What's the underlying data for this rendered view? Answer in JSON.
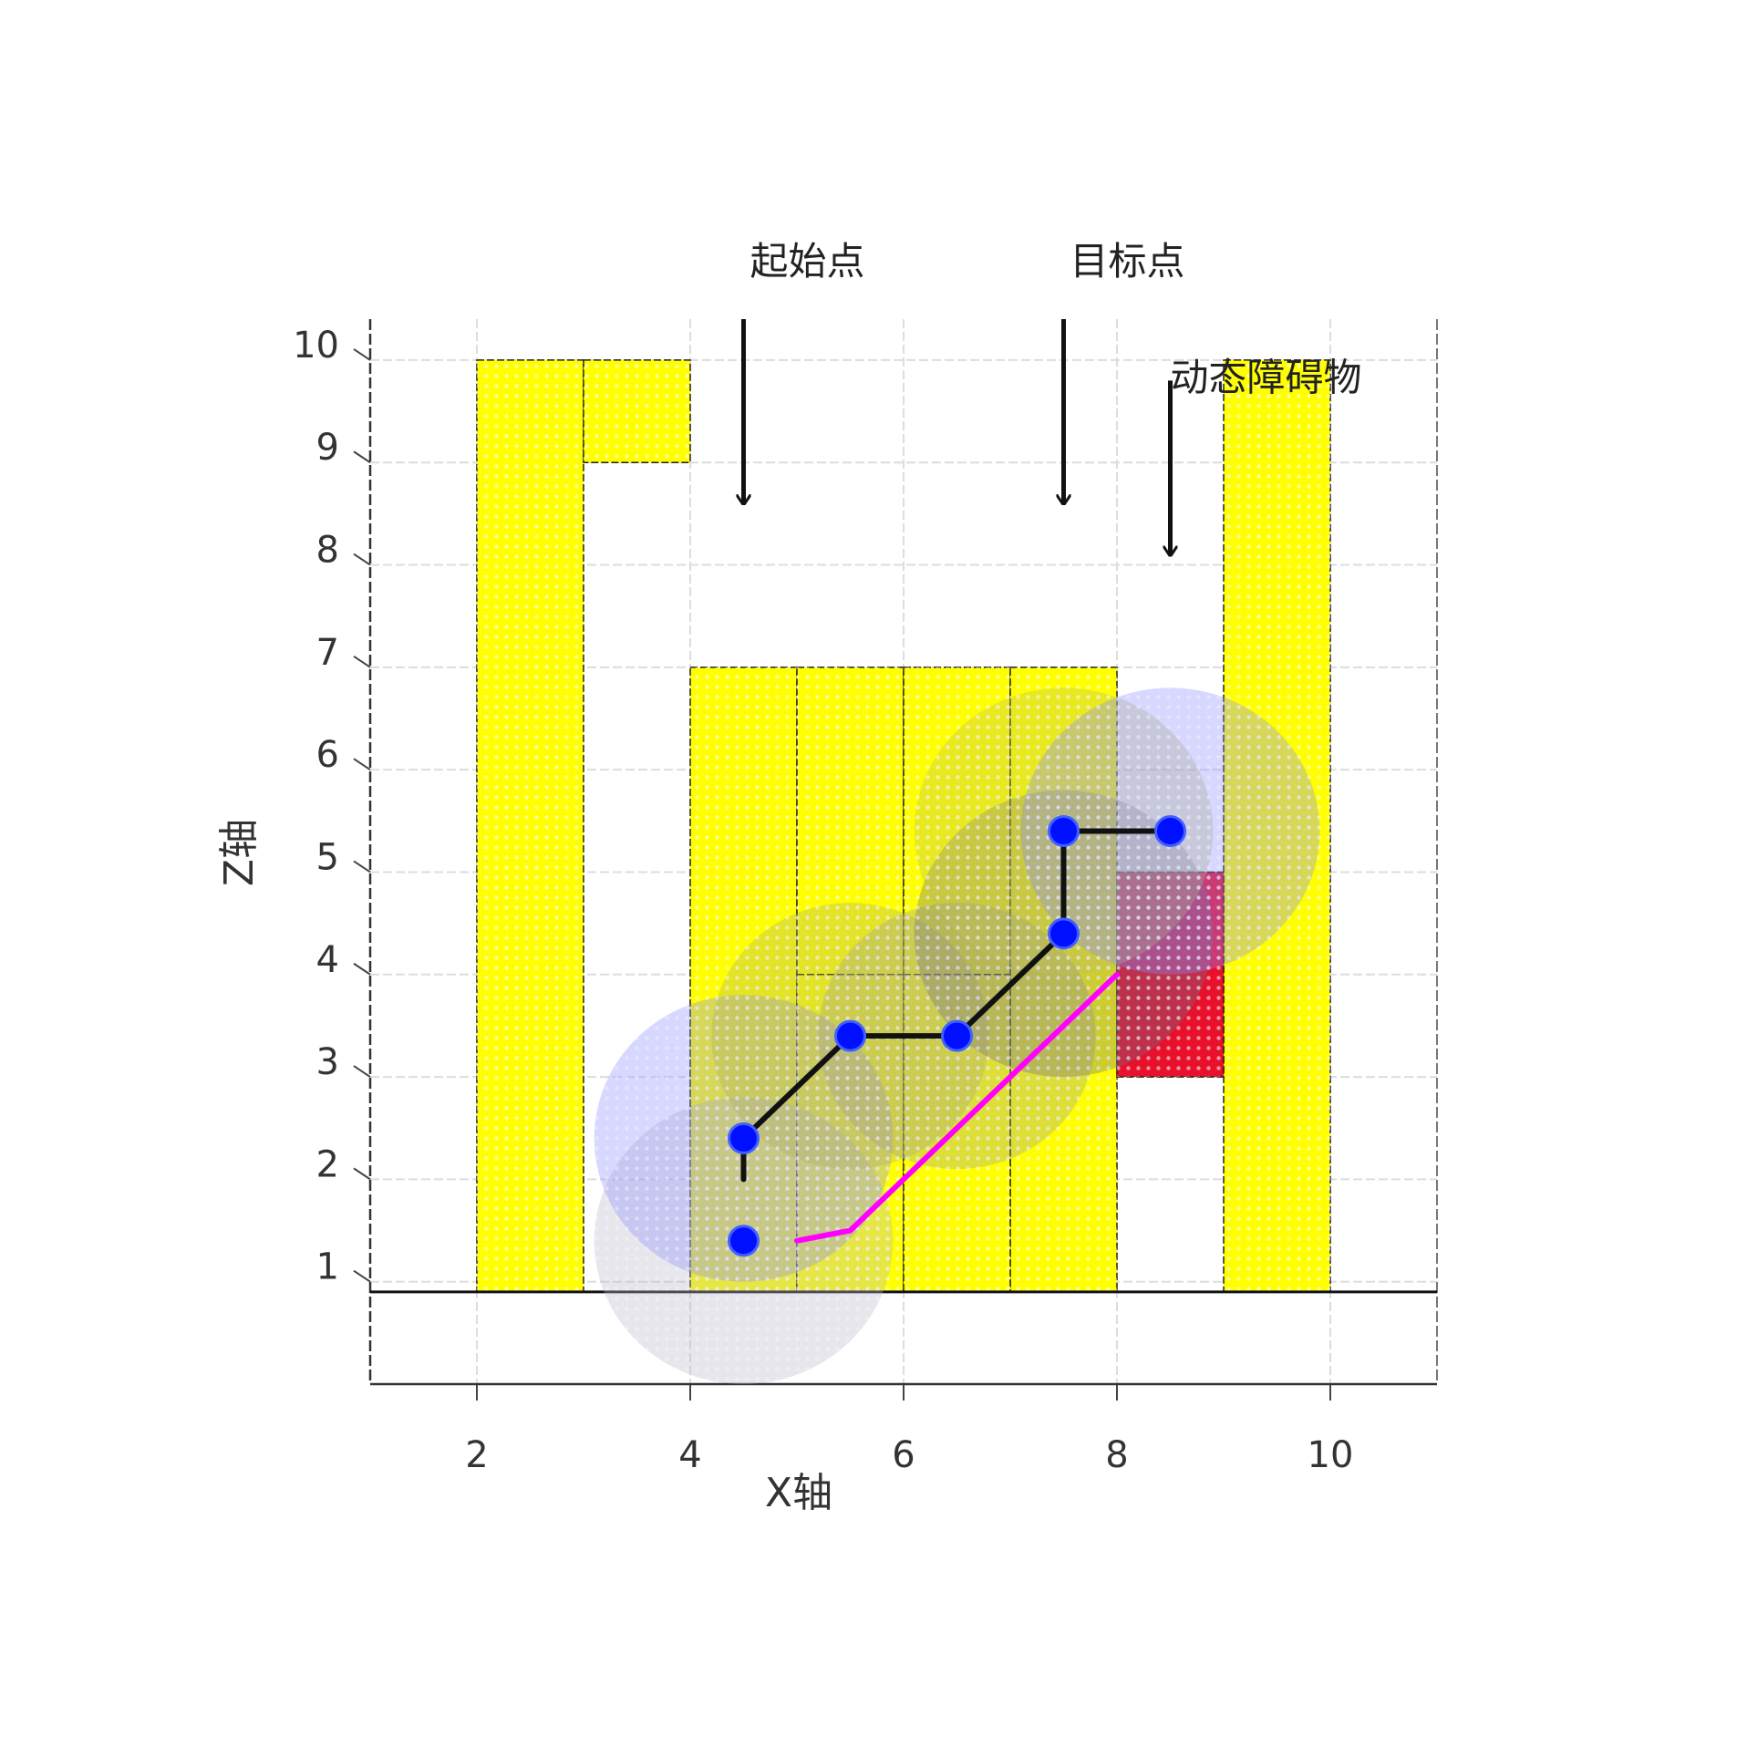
{
  "chart_data": {
    "type": "path-planning",
    "x_label": "X轴",
    "y_label": "Z轴",
    "xlim": [
      1,
      11
    ],
    "ylim": [
      0,
      10.4
    ],
    "xticks": [
      2,
      4,
      6,
      8,
      10
    ],
    "yticks": [
      1,
      2,
      3,
      4,
      5,
      6,
      7,
      8,
      9,
      10
    ],
    "grid": true,
    "floor": 0.9,
    "obstacles": [
      {
        "x": [
          2,
          3
        ],
        "y": [
          0.9,
          10
        ],
        "color": "#ffff00"
      },
      {
        "x": [
          3,
          4
        ],
        "y": [
          9,
          10
        ],
        "color": "#ffff00"
      },
      {
        "x": [
          4,
          5
        ],
        "y": [
          0.9,
          7
        ],
        "color": "#ffff00"
      },
      {
        "x": [
          5,
          6
        ],
        "y": [
          0.9,
          7
        ],
        "color": "#ffff00"
      },
      {
        "x": [
          6,
          7
        ],
        "y": [
          0.9,
          7
        ],
        "color": "#ffff00"
      },
      {
        "x": [
          7,
          8
        ],
        "y": [
          0.9,
          7
        ],
        "color": "#ffff00"
      },
      {
        "x": [
          5,
          6
        ],
        "y": [
          0.9,
          4
        ],
        "color": "#ffff00"
      },
      {
        "x": [
          6,
          7
        ],
        "y": [
          0.9,
          4
        ],
        "color": "#ffff00"
      },
      {
        "x": [
          9,
          10
        ],
        "y": [
          0.9,
          10
        ],
        "color": "#ffff00"
      }
    ],
    "dynamic_obstacle": {
      "x": [
        8,
        9
      ],
      "y": [
        3,
        5
      ],
      "color": "#e8102a"
    },
    "circles": [
      {
        "x": 4.5,
        "y": 1.4,
        "r": 1.4,
        "color": "#b8b8c8"
      },
      {
        "x": 4.5,
        "y": 2.4,
        "r": 1.4,
        "color": "#8c8cff"
      },
      {
        "x": 5.5,
        "y": 3.4,
        "r": 1.3,
        "color": "#b0b070"
      },
      {
        "x": 6.5,
        "y": 3.4,
        "r": 1.3,
        "color": "#a0a0a0"
      },
      {
        "x": 7.5,
        "y": 4.4,
        "r": 1.4,
        "color": "#707090"
      },
      {
        "x": 7.5,
        "y": 5.4,
        "r": 1.4,
        "color": "#c0c060"
      },
      {
        "x": 8.5,
        "y": 5.4,
        "r": 1.4,
        "color": "#8c8cff"
      }
    ],
    "waypoints": {
      "x": [
        4.5,
        4.5,
        5.5,
        6.5,
        7.5,
        7.5,
        8.5
      ],
      "y": [
        1.4,
        2.4,
        3.4,
        3.4,
        4.4,
        5.4,
        5.4
      ],
      "color": "#0010ff"
    },
    "paths": [
      {
        "x": [
          4.5,
          4.5,
          5.5,
          6.5,
          7.5,
          7.5,
          8.5
        ],
        "y": [
          2.0,
          2.4,
          3.4,
          3.4,
          4.4,
          5.4,
          5.4
        ],
        "color": "#111111"
      },
      {
        "x": [
          5,
          5.5,
          6,
          7,
          8
        ],
        "y": [
          1.4,
          1.5,
          2,
          3,
          4
        ],
        "color": "#ff00ff"
      }
    ],
    "annotations": [
      {
        "text": "起始点",
        "x": 4.5,
        "y_tip": 8.6,
        "y_tail": 10.4
      },
      {
        "text": "目标点",
        "x": 7.5,
        "y_tip": 8.6,
        "y_tail": 10.4
      },
      {
        "text": "动态障碍物",
        "x": 8.5,
        "y_tip": 8.1,
        "y_tail": 9.8
      }
    ]
  }
}
